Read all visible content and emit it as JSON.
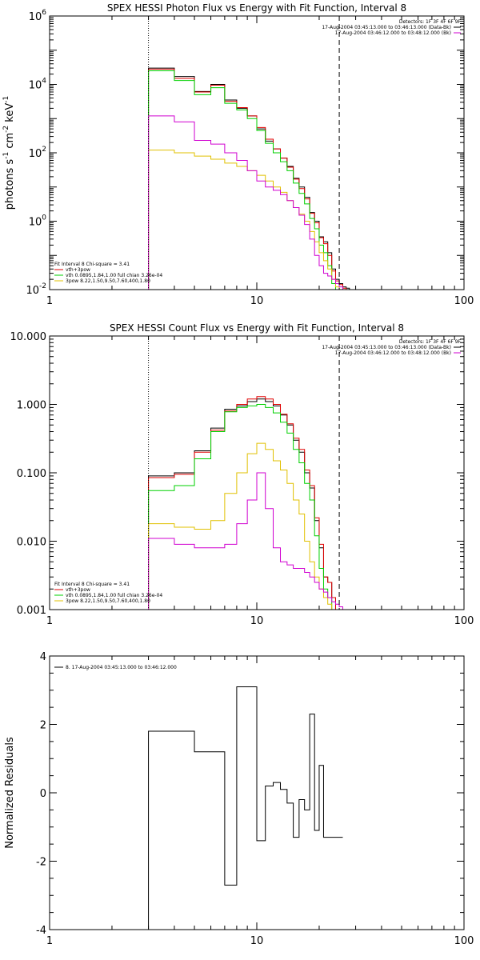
{
  "chart_data": [
    {
      "id": "photon",
      "type": "line",
      "title": "SPEX HESSI Photon Flux vs Energy with Fit Function, Interval 8",
      "ylabel_parts": [
        "photons s",
        "-1",
        " cm",
        "-2",
        " keV",
        "-1"
      ],
      "xscale": "log",
      "yscale": "log",
      "xlim": [
        1,
        100
      ],
      "ylim": [
        0.01,
        1000000
      ],
      "xticks": [
        {
          "v": 1,
          "label": "1"
        },
        {
          "v": 10,
          "label": "10"
        },
        {
          "v": 100,
          "label": "100"
        }
      ],
      "yticks": [
        {
          "v": 0.01,
          "base": "10",
          "exp": "-2"
        },
        {
          "v": 1,
          "base": "10",
          "exp": "0"
        },
        {
          "v": 100,
          "base": "10",
          "exp": "2"
        },
        {
          "v": 10000,
          "base": "10",
          "exp": "4"
        },
        {
          "v": 1000000,
          "base": "10",
          "exp": "6"
        }
      ],
      "vlines": [
        {
          "x": 3,
          "style": "dotted"
        },
        {
          "x": 25,
          "style": "dashed"
        }
      ],
      "header": [
        {
          "text": "Detectors: 1F 3F 4F 6F 9F",
          "color": null
        },
        {
          "text": "17-Aug-2004 03:45:13.000 to 03:46:13.000 (Data-Bk)",
          "color": "#000000"
        },
        {
          "text": "17-Aug-2004 03:46:12.000 to 03:48:12.000 (Bk)",
          "color": "#d000d0"
        }
      ],
      "legend": [
        {
          "text": "Fit Interval 8   Chi-square = 3.41",
          "color": null
        },
        {
          "text": "vth+3pow",
          "color": "#e00000"
        },
        {
          "text": "vth 0.0895,1.84,1.00  full chian 3.26e-04",
          "color": "#00d000"
        },
        {
          "text": "3pow 8.22,1.50,9.50,7.60,400,1.80",
          "color": "#e0c000"
        }
      ],
      "edges": [
        3,
        3.5,
        4,
        4.5,
        5,
        5.5,
        6,
        7,
        8,
        9,
        10,
        11,
        12,
        13,
        14,
        15,
        16,
        17,
        18,
        19,
        20,
        21,
        22,
        23,
        24,
        25,
        26,
        27,
        28,
        29,
        30
      ],
      "series": [
        {
          "name": "Data-Bk",
          "color": "#000000",
          "values": [
            30000,
            30000,
            17000,
            17000,
            6200,
            6200,
            10000,
            3500,
            2000,
            1200,
            500,
            220,
            130,
            70,
            40,
            18,
            10,
            5,
            1.8,
            1.0,
            0.35,
            0.25,
            0.12,
            0.04,
            0.02,
            0.015,
            0.012,
            0.011,
            0.01,
            0.01
          ]
        },
        {
          "name": "vth+3pow",
          "color": "#e00000",
          "values": [
            28000,
            28000,
            15000,
            15000,
            6000,
            6000,
            9500,
            3200,
            2100,
            1200,
            550,
            250,
            130,
            70,
            38,
            17,
            9,
            4.5,
            1.7,
            0.9,
            0.33,
            0.22,
            0.1,
            0.035,
            0.018,
            0.014,
            0.011,
            0.01,
            0.01,
            0.01
          ]
        },
        {
          "name": "vth",
          "color": "#00d000",
          "values": [
            25000,
            25000,
            13000,
            13000,
            5000,
            5000,
            8000,
            2800,
            1800,
            1000,
            450,
            190,
            100,
            55,
            30,
            13,
            6.5,
            3.2,
            1.2,
            0.6,
            0.2,
            0.12,
            0.05,
            0.015,
            0.01,
            0.01,
            0.01,
            0.01,
            0.01,
            0.01
          ]
        },
        {
          "name": "3pow",
          "color": "#e0c000",
          "values": [
            120,
            120,
            100,
            100,
            80,
            80,
            65,
            50,
            40,
            30,
            22,
            15,
            10,
            7,
            4,
            2.5,
            1.6,
            1,
            0.5,
            0.25,
            0.12,
            0.07,
            0.04,
            0.02,
            0.012,
            0.01,
            0.01,
            0.01,
            0.01,
            0.01
          ]
        },
        {
          "name": "Bk",
          "color": "#d000d0",
          "values": [
            1200,
            1200,
            800,
            800,
            230,
            230,
            180,
            100,
            60,
            30,
            15,
            10,
            8,
            6,
            4,
            2.5,
            1.5,
            0.8,
            0.3,
            0.1,
            0.05,
            0.03,
            0.025,
            0.02,
            0.015,
            0.012,
            0.01,
            0.01,
            0.01,
            0.01
          ]
        }
      ]
    },
    {
      "id": "count",
      "type": "line",
      "title": "SPEX HESSI Count Flux vs Energy with Fit Function, Interval 8",
      "ylabel_parts": [],
      "xscale": "log",
      "yscale": "log",
      "xlim": [
        1,
        100
      ],
      "ylim": [
        0.001,
        10
      ],
      "xticks": [
        {
          "v": 1,
          "label": "1"
        },
        {
          "v": 10,
          "label": "10"
        },
        {
          "v": 100,
          "label": "100"
        }
      ],
      "yticks": [
        {
          "v": 0.001,
          "label": "0.001"
        },
        {
          "v": 0.01,
          "label": "0.010"
        },
        {
          "v": 0.1,
          "label": "0.100"
        },
        {
          "v": 1,
          "label": "1.000"
        },
        {
          "v": 10,
          "label": "10.000"
        }
      ],
      "vlines": [
        {
          "x": 3,
          "style": "dotted"
        },
        {
          "x": 25,
          "style": "dashed"
        }
      ],
      "header": [
        {
          "text": "Detectors: 1F 3F 4F 6F 9F",
          "color": null
        },
        {
          "text": "17-Aug-2004 03:45:13.000 to 03:46:13.000 (Data-Bk)",
          "color": "#000000"
        },
        {
          "text": "17-Aug-2004 03:46:12.000 to 03:48:12.000 (Bk)",
          "color": "#d000d0"
        }
      ],
      "legend": [
        {
          "text": "Fit Interval 8   Chi-square = 3.41",
          "color": null
        },
        {
          "text": "vth+3pow",
          "color": "#e00000"
        },
        {
          "text": "vth 0.0895,1.84,1.00  full chian 3.26e-04",
          "color": "#00d000"
        },
        {
          "text": "3pow 8.22,1.50,9.50,7.60,400,1.80",
          "color": "#e0c000"
        }
      ],
      "edges": [
        3,
        3.5,
        4,
        4.5,
        5,
        5.5,
        6,
        7,
        8,
        9,
        10,
        11,
        12,
        13,
        14,
        15,
        16,
        17,
        18,
        19,
        20,
        21,
        22,
        23,
        24,
        25,
        26,
        27,
        28,
        29,
        30
      ],
      "series": [
        {
          "name": "Data-Bk",
          "color": "#000000",
          "values": [
            0.09,
            0.09,
            0.1,
            0.1,
            0.21,
            0.21,
            0.45,
            0.85,
            0.95,
            1.1,
            1.2,
            1.1,
            0.95,
            0.7,
            0.5,
            0.3,
            0.2,
            0.1,
            0.06,
            0.02,
            0.008,
            0.003,
            0.0025,
            0.0015,
            0.001,
            0.001,
            0.001,
            0.001,
            0.001,
            0.001
          ]
        },
        {
          "name": "vth+3pow",
          "color": "#e00000",
          "values": [
            0.085,
            0.085,
            0.095,
            0.095,
            0.2,
            0.2,
            0.42,
            0.8,
            1,
            1.2,
            1.3,
            1.2,
            1,
            0.72,
            0.52,
            0.32,
            0.22,
            0.11,
            0.065,
            0.022,
            0.009,
            0.003,
            0.0025,
            0.0015,
            0.001,
            0.001,
            0.001,
            0.001,
            0.001,
            0.001
          ]
        },
        {
          "name": "vth",
          "color": "#00d000",
          "values": [
            0.055,
            0.055,
            0.065,
            0.065,
            0.16,
            0.16,
            0.4,
            0.78,
            0.9,
            0.95,
            1,
            0.9,
            0.75,
            0.55,
            0.38,
            0.22,
            0.14,
            0.07,
            0.04,
            0.012,
            0.004,
            0.002,
            0.0015,
            0.001,
            0.001,
            0.001,
            0.001,
            0.001,
            0.001,
            0.001
          ]
        },
        {
          "name": "3pow",
          "color": "#e0c000",
          "values": [
            0.018,
            0.018,
            0.016,
            0.016,
            0.015,
            0.015,
            0.02,
            0.05,
            0.1,
            0.19,
            0.27,
            0.22,
            0.15,
            0.11,
            0.07,
            0.04,
            0.025,
            0.01,
            0.005,
            0.003,
            0.002,
            0.0015,
            0.0012,
            0.001,
            0.001,
            0.001,
            0.001,
            0.001,
            0.001,
            0.001
          ]
        },
        {
          "name": "Bk",
          "color": "#d000d0",
          "values": [
            0.011,
            0.011,
            0.009,
            0.009,
            0.008,
            0.008,
            0.008,
            0.009,
            0.018,
            0.04,
            0.1,
            0.03,
            0.008,
            0.005,
            0.0045,
            0.004,
            0.004,
            0.0035,
            0.003,
            0.0025,
            0.002,
            0.0018,
            0.0015,
            0.0013,
            0.0012,
            0.0011,
            0.001,
            0.001,
            0.001,
            0.001
          ]
        }
      ]
    },
    {
      "id": "residuals",
      "type": "line",
      "title": "",
      "ylabel": "Normalized Residuals",
      "xscale": "log",
      "yscale": "linear",
      "xlim": [
        1,
        100
      ],
      "ylim": [
        -4,
        4
      ],
      "xticks": [
        {
          "v": 1,
          "label": "1"
        },
        {
          "v": 10,
          "label": "10"
        },
        {
          "v": 100,
          "label": "100"
        }
      ],
      "yticks": [
        {
          "v": -4,
          "label": "-4"
        },
        {
          "v": -2,
          "label": "-2"
        },
        {
          "v": 0,
          "label": "0"
        },
        {
          "v": 2,
          "label": "2"
        },
        {
          "v": 4,
          "label": "4"
        }
      ],
      "legend": [
        {
          "text": "8. 17-Aug-2004 03:45:13.000 to 03:46:12.000",
          "color": "#000000"
        }
      ],
      "edges": [
        3,
        4,
        5,
        6,
        7,
        8,
        9,
        10,
        11,
        12,
        13,
        14,
        15,
        16,
        17,
        18,
        19,
        20,
        21,
        22,
        23,
        24,
        25,
        26
      ],
      "series": [
        {
          "name": "",
          "color": "#000000",
          "values": [
            1.8,
            1.8,
            1.2,
            1.2,
            -2.7,
            3.1,
            3.1,
            -1.4,
            0.2,
            0.3,
            0.1,
            -0.3,
            -1.3,
            -0.2,
            -0.5,
            2.3,
            -1.1,
            0.8,
            -1.3,
            -1.3,
            -1.3,
            -1.3,
            -1.3
          ]
        }
      ]
    }
  ]
}
